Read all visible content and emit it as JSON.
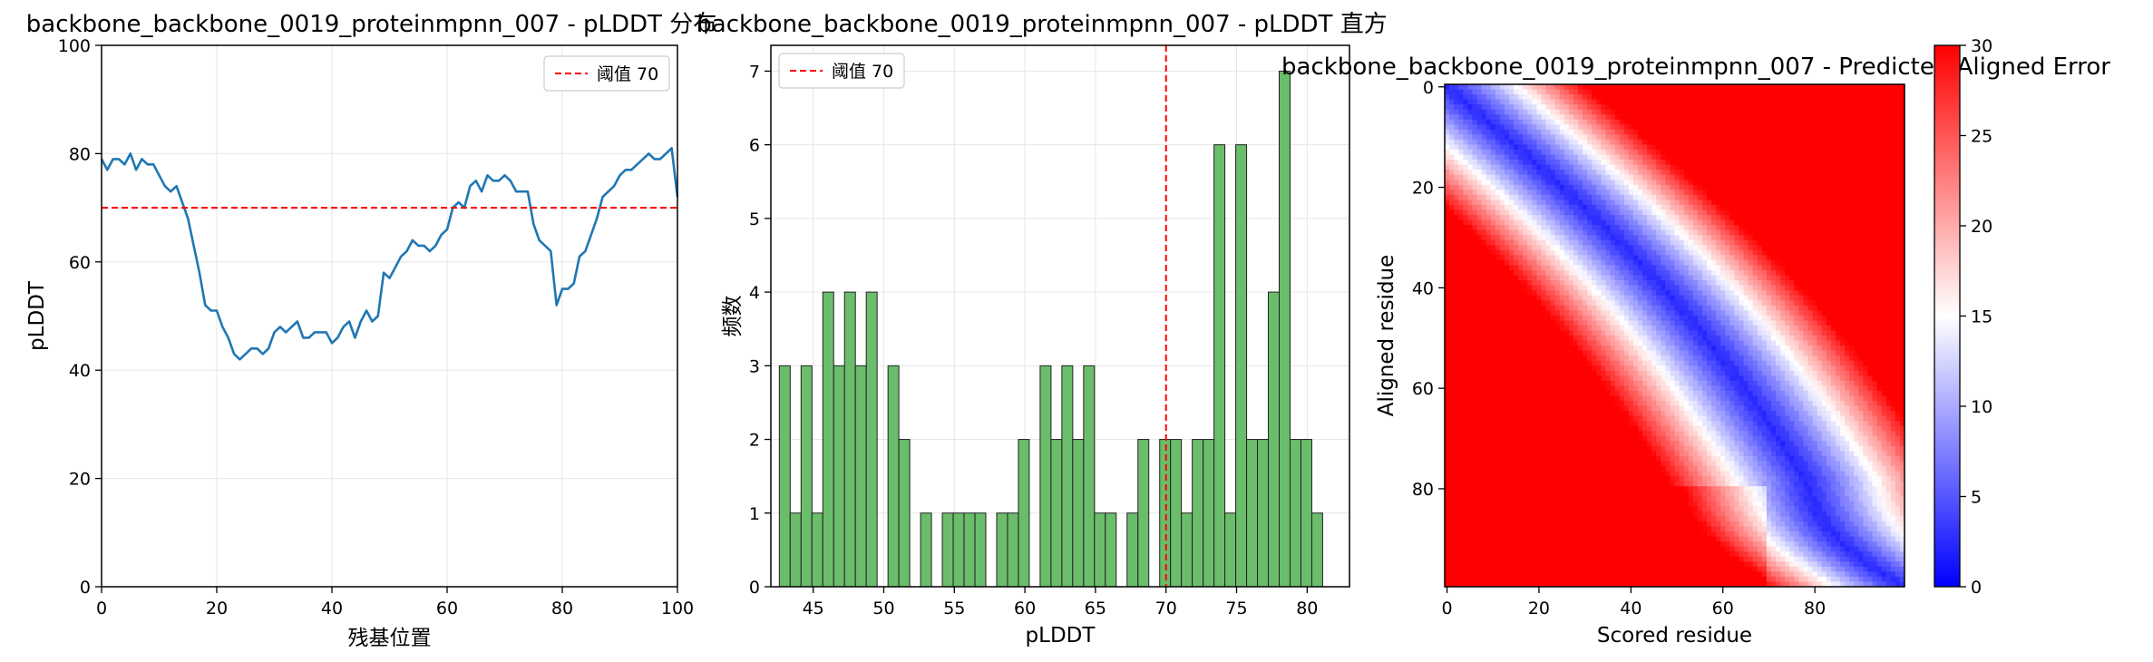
{
  "charts": [
    {
      "type": "line",
      "title": "backbone_backbone_0019_proteinmpnn_007 - pLDDT 分布",
      "xlabel": "残基位置",
      "ylabel": "pLDDT",
      "xlim": [
        0,
        100
      ],
      "ylim": [
        0,
        100
      ],
      "xticks": [
        0,
        20,
        40,
        60,
        80,
        100
      ],
      "yticks": [
        0,
        20,
        40,
        60,
        80,
        100
      ],
      "grid": true,
      "line_color": "#1f77b4",
      "threshold": {
        "value": 70,
        "label": "阈值 70",
        "color": "#ff0000"
      },
      "legend_position": "top-right",
      "x": [
        0,
        1,
        2,
        3,
        4,
        5,
        6,
        7,
        8,
        9,
        10,
        11,
        12,
        13,
        14,
        15,
        16,
        17,
        18,
        19,
        20,
        21,
        22,
        23,
        24,
        25,
        26,
        27,
        28,
        29,
        30,
        31,
        32,
        33,
        34,
        35,
        36,
        37,
        38,
        39,
        40,
        41,
        42,
        43,
        44,
        45,
        46,
        47,
        48,
        49,
        50,
        51,
        52,
        53,
        54,
        55,
        56,
        57,
        58,
        59,
        60,
        61,
        62,
        63,
        64,
        65,
        66,
        67,
        68,
        69,
        70,
        71,
        72,
        73,
        74,
        75,
        76,
        77,
        78,
        79,
        80,
        81,
        82,
        83,
        84,
        85,
        86,
        87,
        88,
        89,
        90,
        91,
        92,
        93,
        94,
        95,
        96,
        97,
        98,
        99,
        100
      ],
      "values": [
        79,
        77,
        79,
        79,
        78,
        80,
        77,
        79,
        78,
        78,
        76,
        74,
        73,
        74,
        71,
        68,
        63,
        58,
        52,
        51,
        51,
        48,
        46,
        43,
        42,
        43,
        44,
        44,
        43,
        44,
        47,
        48,
        47,
        48,
        49,
        46,
        46,
        47,
        47,
        47,
        45,
        46,
        48,
        49,
        46,
        49,
        51,
        49,
        50,
        58,
        57,
        59,
        61,
        62,
        64,
        63,
        63,
        62,
        63,
        65,
        66,
        70,
        71,
        70,
        74,
        75,
        73,
        76,
        75,
        75,
        76,
        75,
        73,
        73,
        73,
        67,
        64,
        63,
        62,
        52,
        55,
        55,
        56,
        61,
        62,
        65,
        68,
        72,
        73,
        74,
        76,
        77,
        77,
        78,
        79,
        80,
        79,
        79,
        80,
        81,
        72
      ]
    },
    {
      "type": "bar",
      "title": "backbone_backbone_0019_proteinmpnn_007 - pLDDT 直方",
      "xlabel": "pLDDT",
      "ylabel": "频数",
      "xlim": [
        42,
        83
      ],
      "ylim": [
        0,
        7.35
      ],
      "xticks": [
        45,
        50,
        55,
        60,
        65,
        70,
        75,
        80
      ],
      "yticks": [
        0,
        1,
        2,
        3,
        4,
        5,
        6,
        7
      ],
      "grid": true,
      "bar_color": "#6abd6a",
      "bar_edge": "#222222",
      "threshold": {
        "value": 70,
        "label": "阈值 70",
        "color": "#ff0000"
      },
      "legend_position": "top-left",
      "bin_start": 42.6,
      "bin_width": 0.77,
      "values": [
        3,
        1,
        3,
        1,
        4,
        3,
        4,
        3,
        4,
        0,
        3,
        2,
        0,
        1,
        0,
        1,
        1,
        1,
        1,
        0,
        1,
        1,
        2,
        0,
        3,
        2,
        3,
        2,
        3,
        1,
        1,
        0,
        1,
        2,
        0,
        2,
        2,
        1,
        2,
        2,
        6,
        1,
        6,
        2,
        2,
        4,
        7,
        2,
        2,
        1
      ]
    },
    {
      "type": "heatmap",
      "title": "backbone_backbone_0019_proteinmpnn_007 - Predicted Aligned Error",
      "xlabel": "Scored residue",
      "ylabel": "Aligned residue",
      "n": 100,
      "xticks": [
        0,
        20,
        40,
        60,
        80
      ],
      "yticks": [
        0,
        20,
        40,
        60,
        80
      ],
      "colormap": "bwr",
      "color_range": [
        0,
        30
      ],
      "colorbar_ticks": [
        0,
        5,
        10,
        15,
        20,
        25,
        30
      ]
    }
  ]
}
